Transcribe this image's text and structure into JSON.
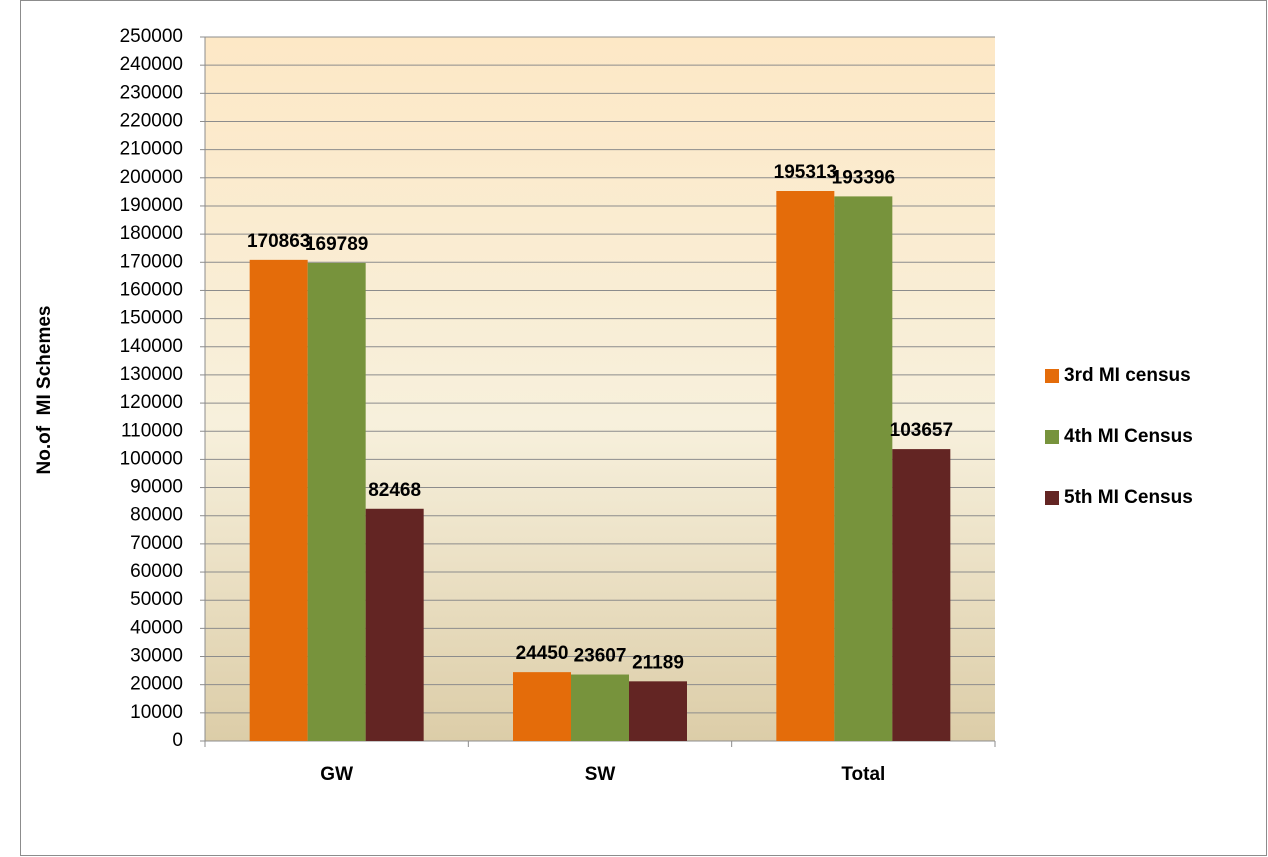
{
  "chart_data": {
    "type": "bar",
    "y_label": "No.of  MI Schemes",
    "categories": [
      "GW",
      "SW",
      "Total"
    ],
    "series": [
      {
        "name": "3rd MI census",
        "color": "#e46c0a",
        "values": [
          170863,
          24450,
          195313
        ]
      },
      {
        "name": "4th MI Census",
        "color": "#77933c",
        "values": [
          169789,
          23607,
          193396
        ]
      },
      {
        "name": "5th MI Census",
        "color": "#632523",
        "values": [
          82468,
          21189,
          103657
        ]
      }
    ],
    "ylim": [
      0,
      250000
    ],
    "yticks": [
      0,
      10000,
      20000,
      30000,
      40000,
      50000,
      60000,
      70000,
      80000,
      90000,
      100000,
      110000,
      120000,
      130000,
      140000,
      150000,
      160000,
      170000,
      180000,
      190000,
      200000,
      210000,
      220000,
      230000,
      240000,
      250000
    ],
    "grid": true,
    "legend": "right"
  }
}
